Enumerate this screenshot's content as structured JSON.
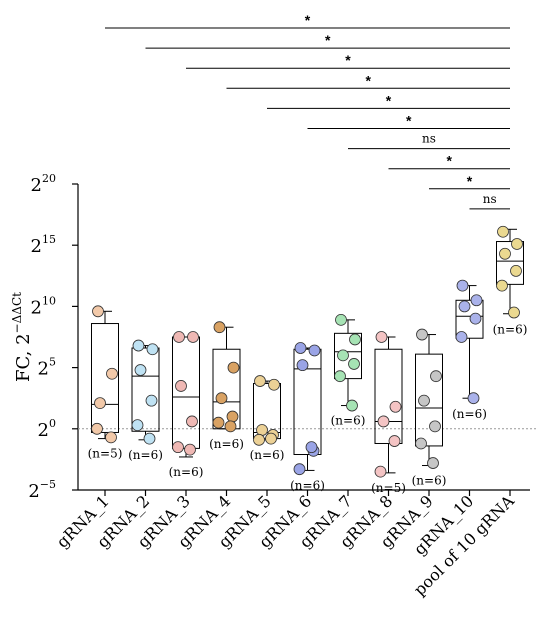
{
  "chart_data": {
    "type": "box",
    "ylabel": "FC, 2",
    "ylabel_sup": "−ΔΔCt",
    "y_scale": "log2",
    "ylim_exponent": [
      -5,
      20
    ],
    "yticks": [
      {
        "exp": 20,
        "base": "2",
        "sup": "20"
      },
      {
        "exp": 15,
        "base": "2",
        "sup": "15"
      },
      {
        "exp": 10,
        "base": "2",
        "sup": "10"
      },
      {
        "exp": 5,
        "base": "2",
        "sup": "5"
      },
      {
        "exp": 0,
        "base": "2",
        "sup": "0"
      },
      {
        "exp": -5,
        "base": "2",
        "sup": "−5"
      }
    ],
    "reference_line_exponent": 0,
    "categories": [
      "gRNA_1",
      "gRNA_2",
      "gRNA_3",
      "gRNA_4",
      "gRNA_5",
      "gRNA_6",
      "gRNA_7",
      "gRNA_8",
      "gRNA_9",
      "gRNA_10",
      "pool of 10 gRNA"
    ],
    "groups": [
      {
        "label": "gRNA_1",
        "n": "(n=5)",
        "color": "#f2c9a9",
        "min": -0.8,
        "q1": -0.3,
        "median": 2.0,
        "q3": 8.6,
        "max": 9.6,
        "points": [
          9.6,
          4.5,
          2.1,
          -0.7,
          0.0
        ]
      },
      {
        "label": "gRNA_2",
        "n": "(n=6)",
        "color": "#bfe2f3",
        "min": -0.9,
        "q1": -0.2,
        "median": 4.3,
        "q3": 6.6,
        "max": 6.8,
        "points": [
          6.8,
          6.5,
          4.8,
          2.3,
          0.3,
          -0.8
        ]
      },
      {
        "label": "gRNA_3",
        "n": "(n=6)",
        "color": "#efb8b4",
        "min": -2.3,
        "q1": -1.6,
        "median": 2.6,
        "q3": 7.5,
        "max": 7.5,
        "points": [
          7.5,
          7.5,
          3.5,
          0.6,
          -1.5,
          -1.7
        ]
      },
      {
        "label": "gRNA_4",
        "n": "(n=6)",
        "color": "#d9a263",
        "min": 0.0,
        "q1": 0.0,
        "median": 2.2,
        "q3": 6.5,
        "max": 8.3,
        "points": [
          8.3,
          5.0,
          2.5,
          1.0,
          0.5,
          0.2
        ]
      },
      {
        "label": "gRNA_5",
        "n": "(n=6)",
        "color": "#ecd196",
        "min": -0.9,
        "q1": -0.8,
        "median": -0.3,
        "q3": 3.7,
        "max": 3.9,
        "points": [
          3.9,
          3.6,
          -0.1,
          -0.5,
          -0.9,
          -0.8
        ]
      },
      {
        "label": "gRNA_6",
        "n": "(n=6)",
        "color": "#9aa4e6",
        "min": -3.4,
        "q1": -2.1,
        "median": 4.9,
        "q3": 6.5,
        "max": 6.6,
        "points": [
          6.6,
          6.4,
          5.2,
          -1.8,
          -3.3,
          -1.5
        ]
      },
      {
        "label": "gRNA_7",
        "n": "(n=6)",
        "color": "#a6e3b4",
        "min": 1.9,
        "q1": 4.1,
        "median": 6.3,
        "q3": 7.8,
        "max": 8.9,
        "points": [
          8.9,
          7.3,
          6.0,
          5.3,
          4.3,
          1.9
        ]
      },
      {
        "label": "gRNA_8",
        "n": "(n=5)",
        "color": "#f4c4c4",
        "min": -3.6,
        "q1": -1.2,
        "median": 0.6,
        "q3": 6.5,
        "max": 7.5,
        "points": [
          7.5,
          1.8,
          0.6,
          -1.0,
          -3.5
        ]
      },
      {
        "label": "gRNA_9",
        "n": "(n=6)",
        "color": "#c6c6c6",
        "min": -3.0,
        "q1": -1.4,
        "median": 1.7,
        "q3": 6.1,
        "max": 7.7,
        "points": [
          7.7,
          4.3,
          2.3,
          0.2,
          -1.2,
          -2.8
        ]
      },
      {
        "label": "gRNA_10",
        "n": "(n=6)",
        "color": "#aab2ea",
        "min": 2.5,
        "q1": 7.4,
        "median": 9.2,
        "q3": 10.5,
        "max": 11.7,
        "points": [
          11.7,
          10.5,
          10.0,
          9.0,
          7.5,
          2.5
        ]
      },
      {
        "label": "pool of 10 gRNA",
        "n": "(n=6)",
        "color": "#ebd990",
        "min": 9.4,
        "q1": 11.8,
        "median": 13.7,
        "q3": 15.3,
        "max": 16.3,
        "points": [
          16.1,
          15.1,
          14.3,
          12.9,
          11.7,
          9.5
        ]
      }
    ],
    "comparisons": [
      {
        "from": 0,
        "to": 10,
        "label": "*"
      },
      {
        "from": 1,
        "to": 10,
        "label": "*"
      },
      {
        "from": 2,
        "to": 10,
        "label": "*"
      },
      {
        "from": 3,
        "to": 10,
        "label": "*"
      },
      {
        "from": 4,
        "to": 10,
        "label": "*"
      },
      {
        "from": 5,
        "to": 10,
        "label": "*"
      },
      {
        "from": 6,
        "to": 10,
        "label": "ns"
      },
      {
        "from": 7,
        "to": 10,
        "label": "*"
      },
      {
        "from": 8,
        "to": 10,
        "label": "*"
      },
      {
        "from": 9,
        "to": 10,
        "label": "ns"
      }
    ]
  }
}
